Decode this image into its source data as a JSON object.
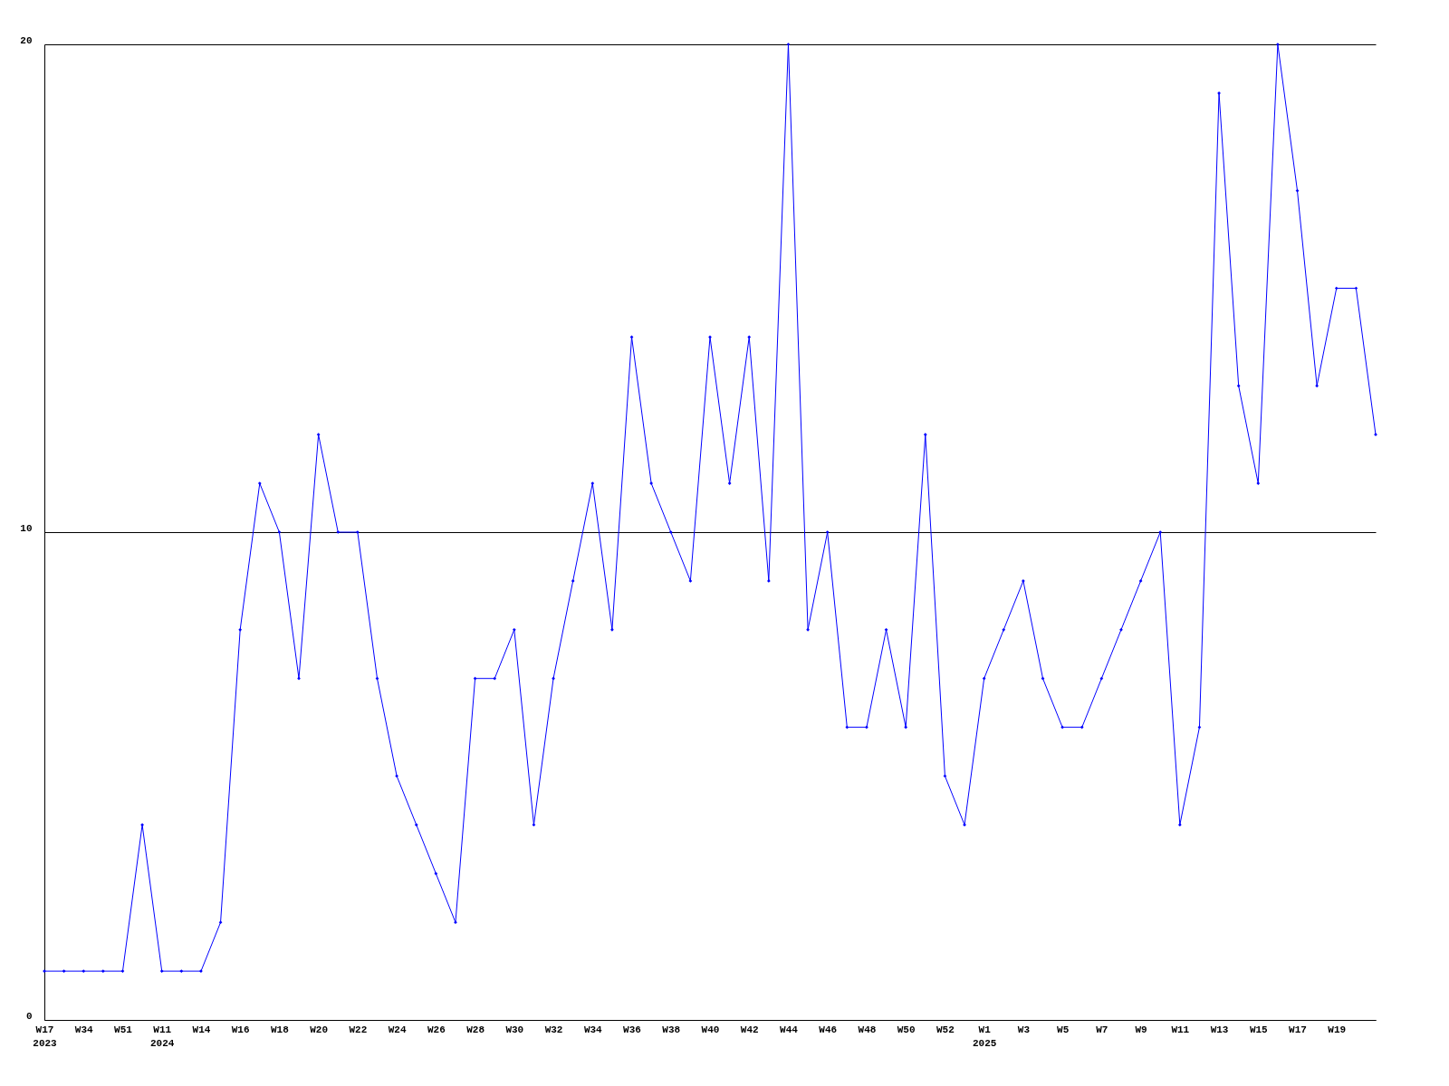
{
  "chart_data": {
    "type": "line",
    "categories": [
      "W17\n2023",
      null,
      "W34",
      null,
      "W51",
      null,
      "W11\n2024",
      null,
      "W14",
      null,
      "W16",
      null,
      "W18",
      null,
      "W20",
      null,
      "W22",
      null,
      "W24",
      null,
      "W26",
      null,
      "W28",
      null,
      "W30",
      null,
      "W32",
      null,
      "W34",
      null,
      "W36",
      null,
      "W38",
      null,
      "W40",
      null,
      "W42",
      null,
      "W44",
      null,
      "W46",
      null,
      "W48",
      null,
      "W50",
      null,
      "W52",
      null,
      "W1\n2025",
      null,
      "W3",
      null,
      "W5",
      null,
      "W7",
      null,
      "W9",
      null,
      "W11",
      null,
      "W13",
      null,
      "W15",
      null,
      "W17",
      null,
      "W19",
      null,
      null
    ],
    "series": [
      {
        "color": "#0000ff",
        "values": [
          1,
          1,
          1,
          1,
          1,
          4,
          1,
          1,
          1,
          2,
          8,
          11,
          10,
          7,
          12,
          10,
          10,
          7,
          5,
          4,
          3,
          2,
          7,
          7,
          8,
          4,
          7,
          9,
          11,
          8,
          14,
          11,
          10,
          9,
          14,
          11,
          14,
          9,
          20,
          8,
          10,
          6,
          6,
          8,
          6,
          12,
          5,
          4,
          7,
          8,
          9,
          7,
          6,
          6,
          7,
          8,
          9,
          10,
          4,
          6,
          19,
          13,
          11,
          20,
          17,
          13,
          15,
          15,
          12
        ]
      }
    ],
    "ylim": [
      0,
      20
    ],
    "yticks": [
      0,
      10,
      20
    ],
    "grid": "y",
    "marker": "diamond",
    "line_style": "solid"
  }
}
